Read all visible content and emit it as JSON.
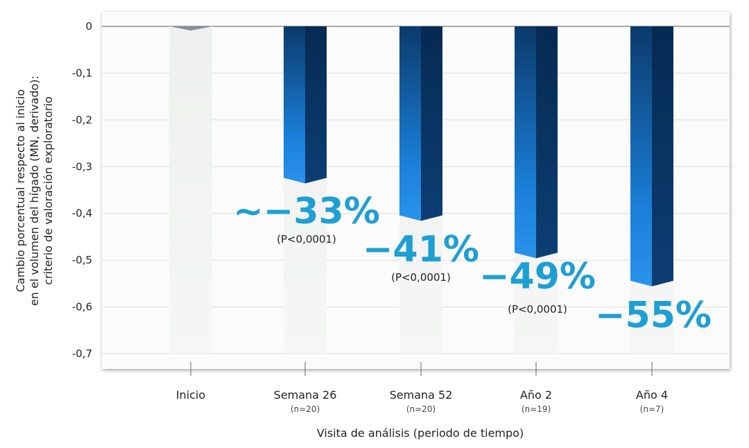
{
  "chart_data": {
    "type": "bar",
    "ylabel_lines": [
      "Cambio porcentual respecto al inicio",
      "en el volumen del hígado (MN, derivado):",
      "criterio de valoración exploratorio"
    ],
    "xlabel": "Visita de análisis (periodo de tiempo)",
    "ylim": [
      -0.7,
      0
    ],
    "yticks": [
      "0",
      "-0,1",
      "-0,2",
      "-0,3",
      "-0,4",
      "-0,5",
      "-0,6",
      "-0,7"
    ],
    "ytick_values": [
      0,
      -0.1,
      -0.2,
      -0.3,
      -0.4,
      -0.5,
      -0.6,
      -0.7
    ],
    "grid": true,
    "categories": [
      "Inicio",
      "Semana 26",
      "Semana 52",
      "Año 2",
      "Año 4"
    ],
    "n_labels": [
      "",
      "(n=20)",
      "(n=20)",
      "(n=19)",
      "(n=7)"
    ],
    "values": [
      -0.01,
      -0.33,
      -0.41,
      -0.49,
      -0.55
    ],
    "value_labels": [
      "",
      "~−33%",
      "−41%",
      "−49%",
      "−55%"
    ],
    "p_value_labels": [
      "",
      "(P<0,0001)",
      "(P<0,0001)",
      "(P<0,0001)",
      ""
    ],
    "colors": {
      "bar_top": "#0b3a6b",
      "bar_mid": "#1a7fd8",
      "bar_side": "#0a2f5a",
      "label": "#1e9fd4",
      "baseline_bar": "#8a8f91"
    }
  }
}
